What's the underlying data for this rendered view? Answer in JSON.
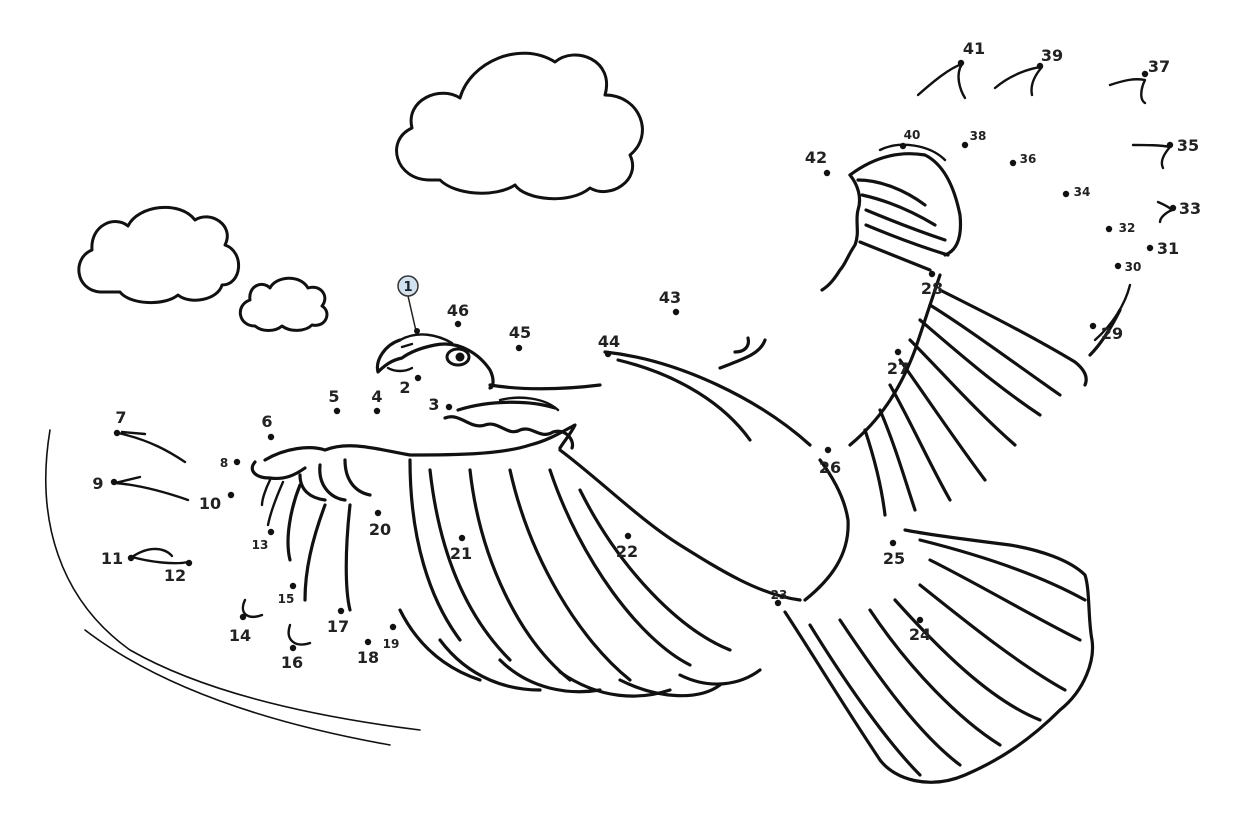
{
  "puzzle": {
    "start_marker": "1",
    "labels": [
      "2",
      "3",
      "4",
      "5",
      "6",
      "7",
      "8",
      "9",
      "10",
      "11",
      "12",
      "13",
      "14",
      "15",
      "16",
      "17",
      "18",
      "19",
      "20",
      "21",
      "22",
      "23",
      "24",
      "25",
      "26",
      "27",
      "28",
      "29",
      "30",
      "31",
      "32",
      "33",
      "34",
      "35",
      "36",
      "37",
      "38",
      "39",
      "40",
      "41",
      "42",
      "43",
      "44",
      "45",
      "46"
    ]
  },
  "colors": {
    "ink": "#111111",
    "start_badge": "#cfe3f3",
    "paper": "#ffffff"
  }
}
